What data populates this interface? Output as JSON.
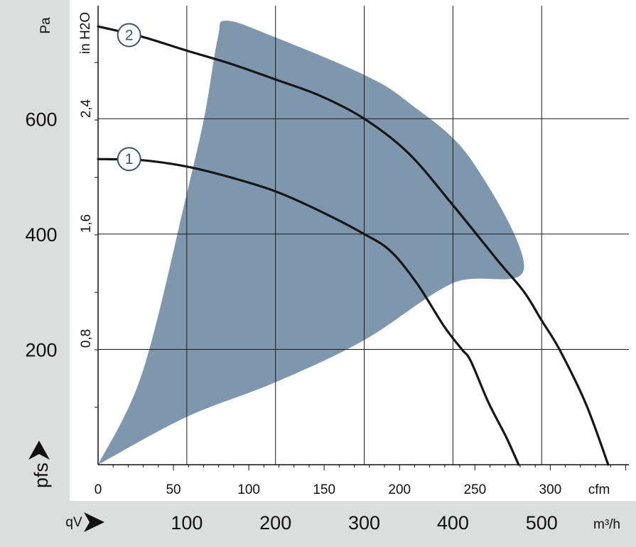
{
  "chart_data": {
    "type": "line",
    "x_units": {
      "primary": "m³/h",
      "secondary": "cfm"
    },
    "y_units": {
      "primary": "Pa",
      "secondary": "in H2O"
    },
    "x_axis_label": "qV",
    "y_axis_label": "pfs",
    "xlim_m3h": [
      0,
      600
    ],
    "ylim_pa": [
      0,
      760
    ],
    "grid": true,
    "m3h_ticks": [
      {
        "value": 100,
        "label": "100"
      },
      {
        "value": 200,
        "label": "200"
      },
      {
        "value": 300,
        "label": "300"
      },
      {
        "value": 400,
        "label": "400"
      },
      {
        "value": 500,
        "label": "500"
      }
    ],
    "cfm_ticks": [
      {
        "value": 0,
        "label": "0"
      },
      {
        "value": 50,
        "label": "50"
      },
      {
        "value": 100,
        "label": "100"
      },
      {
        "value": 150,
        "label": "150"
      },
      {
        "value": 200,
        "label": "200"
      },
      {
        "value": 250,
        "label": "250"
      },
      {
        "value": 300,
        "label": "300"
      }
    ],
    "pa_ticks": [
      {
        "value": 200,
        "label": "200"
      },
      {
        "value": 400,
        "label": "400"
      },
      {
        "value": 600,
        "label": "600"
      }
    ],
    "inh2o_ticks": [
      {
        "value": 0.8,
        "label": "0,8"
      },
      {
        "value": 1.6,
        "label": "1,6"
      },
      {
        "value": 2.4,
        "label": "2,4"
      }
    ],
    "unit_labels": {
      "pa": "Pa",
      "inh2o": "in H2O",
      "cfm": "cfm",
      "m3h": "m³/h"
    },
    "operating_range_polygon": [
      [
        0,
        0
      ],
      [
        100,
        83
      ],
      [
        200,
        143
      ],
      [
        300,
        216
      ],
      [
        400,
        315
      ],
      [
        480,
        340
      ],
      [
        420,
        530
      ],
      [
        350,
        628
      ],
      [
        300,
        676
      ],
      [
        200,
        741
      ],
      [
        145,
        770
      ],
      [
        135,
        740
      ],
      [
        120,
        605
      ],
      [
        100,
        470
      ],
      [
        50,
        160
      ],
      [
        0,
        0
      ]
    ],
    "series": [
      {
        "name": "1",
        "points": [
          [
            0,
            530
          ],
          [
            50,
            528
          ],
          [
            100,
            517
          ],
          [
            150,
            498
          ],
          [
            200,
            474
          ],
          [
            250,
            440
          ],
          [
            300,
            400
          ],
          [
            330,
            370
          ],
          [
            360,
            313
          ],
          [
            390,
            240
          ],
          [
            410,
            200
          ],
          [
            420,
            180
          ],
          [
            440,
            108
          ],
          [
            460,
            48
          ],
          [
            474,
            0
          ]
        ]
      },
      {
        "name": "2",
        "points": [
          [
            0,
            760
          ],
          [
            50,
            742
          ],
          [
            100,
            718
          ],
          [
            150,
            695
          ],
          [
            200,
            668
          ],
          [
            250,
            640
          ],
          [
            300,
            600
          ],
          [
            350,
            540
          ],
          [
            400,
            450
          ],
          [
            450,
            355
          ],
          [
            480,
            300
          ],
          [
            500,
            250
          ],
          [
            520,
            200
          ],
          [
            550,
            105
          ],
          [
            575,
            0
          ]
        ]
      }
    ],
    "series_label_positions": [
      {
        "series": "1",
        "x": 35,
        "y": 530
      },
      {
        "series": "2",
        "x": 35,
        "y": 745
      }
    ]
  }
}
